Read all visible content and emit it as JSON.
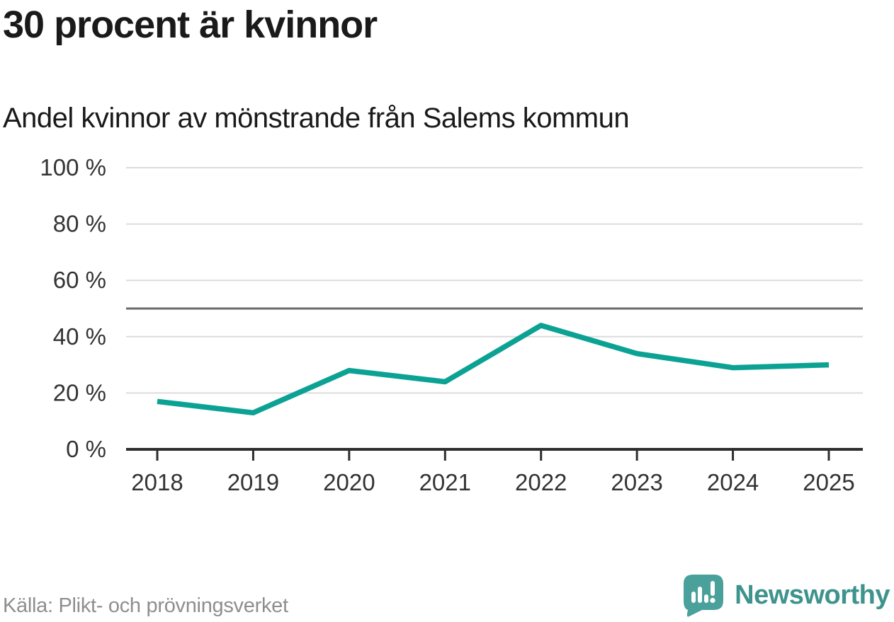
{
  "header": {
    "title": "30 procent är kvinnor",
    "subtitle": "Andel kvinnor av mönstrande från Salems kommun"
  },
  "chart_data": {
    "type": "line",
    "title": "30 procent är kvinnor",
    "subtitle": "Andel kvinnor av mönstrande från Salems kommun",
    "categories": [
      "2018",
      "2019",
      "2020",
      "2021",
      "2022",
      "2023",
      "2024",
      "2025"
    ],
    "series": [
      {
        "name": "Andel kvinnor av mönstrande från Salems kommun",
        "values": [
          17,
          13,
          28,
          24,
          44,
          34,
          29,
          30
        ]
      }
    ],
    "unit": "%",
    "xlabel": "",
    "ylabel": "",
    "ylim": [
      0,
      100
    ],
    "y_ticks": [
      0,
      20,
      40,
      60,
      80,
      100
    ],
    "y_tick_labels": [
      "0 %",
      "20 %",
      "40 %",
      "60 %",
      "80 %",
      "100 %"
    ],
    "reference_line": 50,
    "grid": "horizontal",
    "legend_position": "none",
    "line_color": "#0ba294",
    "reference_line_color": "#6a6b6e",
    "axis_color": "#2e2e2e",
    "gridline_color": "#dcdcdc",
    "tick_label_color": "#333333"
  },
  "footer": {
    "source": "Källa: Plikt- och prövningsverket",
    "logo_text": "Newsworthy",
    "logo_icon": "newsworthy-speech-bubble-bar-chart-icon",
    "logo_color": "#4aa09a",
    "logo_text_color": "#3f938d"
  }
}
